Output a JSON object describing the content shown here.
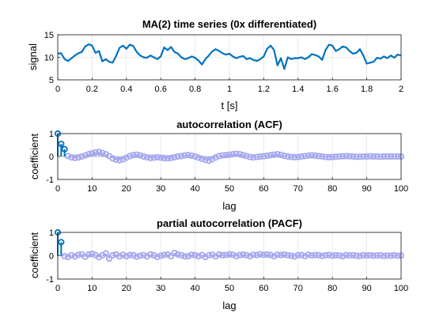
{
  "colors": {
    "signal": "#0072bd",
    "lag_main": "#0072bd",
    "lag_rest": "#a5a8ee",
    "grid": "#dcdcdc"
  },
  "chart_data": [
    {
      "id": "series",
      "type": "line",
      "title": "MA(2) time series (0x differentiated)",
      "xlabel": "t [s]",
      "ylabel": "signal",
      "xlim": [
        0,
        2
      ],
      "ylim": [
        5,
        15
      ],
      "xticks": [
        0,
        0.2,
        0.4,
        0.6,
        0.8,
        1,
        1.2,
        1.4,
        1.6,
        1.8,
        2
      ],
      "yticks": [
        5,
        10,
        15
      ],
      "grid": true,
      "x": [
        0,
        0.02,
        0.04,
        0.06,
        0.08,
        0.1,
        0.12,
        0.14,
        0.16,
        0.18,
        0.2,
        0.22,
        0.24,
        0.26,
        0.28,
        0.3,
        0.32,
        0.34,
        0.36,
        0.38,
        0.4,
        0.42,
        0.44,
        0.46,
        0.48,
        0.5,
        0.52,
        0.54,
        0.56,
        0.58,
        0.6,
        0.62,
        0.64,
        0.66,
        0.68,
        0.7,
        0.72,
        0.74,
        0.76,
        0.78,
        0.8,
        0.82,
        0.84,
        0.86,
        0.88,
        0.9,
        0.92,
        0.94,
        0.96,
        0.98,
        1,
        1.02,
        1.04,
        1.06,
        1.08,
        1.1,
        1.12,
        1.14,
        1.16,
        1.18,
        1.2,
        1.22,
        1.24,
        1.26,
        1.28,
        1.3,
        1.32,
        1.34,
        1.36,
        1.38,
        1.4,
        1.42,
        1.44,
        1.46,
        1.48,
        1.5,
        1.52,
        1.54,
        1.56,
        1.58,
        1.6,
        1.62,
        1.64,
        1.66,
        1.68,
        1.7,
        1.72,
        1.74,
        1.76,
        1.78,
        1.8,
        1.82,
        1.84,
        1.86,
        1.88,
        1.9,
        1.92,
        1.94,
        1.96,
        1.98,
        2
      ],
      "y": [
        10.8,
        10.9,
        9.6,
        9.2,
        9.8,
        10.4,
        10.9,
        11.2,
        12.4,
        12.9,
        12.6,
        11.0,
        11.4,
        9.1,
        9.6,
        9.0,
        8.8,
        10.3,
        12.1,
        12.6,
        11.9,
        12.8,
        12.5,
        11.2,
        10.4,
        10.0,
        9.9,
        10.4,
        10.0,
        9.6,
        10.2,
        12.2,
        11.6,
        12.3,
        11.2,
        10.8,
        10.0,
        9.6,
        9.8,
        10.2,
        9.9,
        9.3,
        8.4,
        9.6,
        10.4,
        11.3,
        11.8,
        11.4,
        10.9,
        10.6,
        10.8,
        10.2,
        9.8,
        10.1,
        10.3,
        9.6,
        9.8,
        9.4,
        9.2,
        9.6,
        10.2,
        11.9,
        12.6,
        11.6,
        8.2,
        9.8,
        7.4,
        10.0,
        9.6,
        9.8,
        9.8,
        10.0,
        9.6,
        10.0,
        10.7,
        10.5,
        10.2,
        9.4,
        11.6,
        12.8,
        12.6,
        11.4,
        11.8,
        12.4,
        12.2,
        11.4,
        10.8,
        11.0,
        11.8,
        10.4,
        8.6,
        8.8,
        9.0,
        9.9,
        9.7,
        10.2,
        9.8,
        10.4,
        9.9,
        10.6,
        10.4
      ]
    },
    {
      "id": "acf",
      "type": "stem",
      "title": "autocorrelation (ACF)",
      "xlabel": "lag",
      "ylabel": "coefficient",
      "xlim": [
        0,
        100
      ],
      "ylim": [
        -1,
        1
      ],
      "xticks": [
        0,
        10,
        20,
        30,
        40,
        50,
        60,
        70,
        80,
        90,
        100
      ],
      "yticks": [
        -1,
        0,
        1
      ],
      "grid": true,
      "highlighted_lags": 3,
      "x": [
        0,
        1,
        2,
        3,
        4,
        5,
        6,
        7,
        8,
        9,
        10,
        11,
        12,
        13,
        14,
        15,
        16,
        17,
        18,
        19,
        20,
        21,
        22,
        23,
        24,
        25,
        26,
        27,
        28,
        29,
        30,
        31,
        32,
        33,
        34,
        35,
        36,
        37,
        38,
        39,
        40,
        41,
        42,
        43,
        44,
        45,
        46,
        47,
        48,
        49,
        50,
        51,
        52,
        53,
        54,
        55,
        56,
        57,
        58,
        59,
        60,
        61,
        62,
        63,
        64,
        65,
        66,
        67,
        68,
        69,
        70,
        71,
        72,
        73,
        74,
        75,
        76,
        77,
        78,
        79,
        80,
        81,
        82,
        83,
        84,
        85,
        86,
        87,
        88,
        89,
        90,
        91,
        92,
        93,
        94,
        95,
        96,
        97,
        98,
        99,
        100
      ],
      "y": [
        1.0,
        0.55,
        0.32,
        0.02,
        -0.04,
        -0.06,
        -0.04,
        0.0,
        0.05,
        0.1,
        0.14,
        0.18,
        0.2,
        0.16,
        0.1,
        0.02,
        -0.08,
        -0.14,
        -0.16,
        -0.12,
        -0.05,
        0.02,
        0.06,
        0.08,
        0.05,
        0.0,
        -0.04,
        -0.06,
        -0.05,
        -0.03,
        -0.05,
        -0.07,
        -0.08,
        -0.06,
        -0.03,
        0.0,
        0.02,
        0.05,
        0.06,
        0.04,
        0.0,
        -0.05,
        -0.1,
        -0.14,
        -0.18,
        -0.12,
        -0.04,
        0.02,
        0.05,
        0.06,
        0.08,
        0.1,
        0.12,
        0.1,
        0.06,
        0.02,
        -0.02,
        -0.04,
        -0.02,
        0.0,
        0.01,
        0.03,
        0.06,
        0.08,
        0.1,
        0.07,
        0.03,
        0.0,
        -0.02,
        -0.03,
        -0.02,
        0.0,
        0.02,
        0.04,
        0.05,
        0.04,
        0.02,
        0.0,
        -0.02,
        -0.03,
        -0.02,
        -0.01,
        0.0,
        0.01,
        0.02,
        0.01,
        0.0,
        -0.01,
        -0.01,
        0.0,
        0.0,
        0.01,
        0.0,
        0.0,
        -0.01,
        0.0,
        0.0,
        0.0,
        0.0,
        0.0,
        0.0
      ]
    },
    {
      "id": "pacf",
      "type": "stem",
      "title": "partial autocorrelation (PACF)",
      "xlabel": "lag",
      "ylabel": "coefficient",
      "xlim": [
        0,
        100
      ],
      "ylim": [
        -1,
        1
      ],
      "xticks": [
        0,
        10,
        20,
        30,
        40,
        50,
        60,
        70,
        80,
        90,
        100
      ],
      "yticks": [
        -1,
        0,
        1
      ],
      "grid": true,
      "highlighted_lags": 2,
      "x": [
        0,
        1,
        2,
        3,
        4,
        5,
        6,
        7,
        8,
        9,
        10,
        11,
        12,
        13,
        14,
        15,
        16,
        17,
        18,
        19,
        20,
        21,
        22,
        23,
        24,
        25,
        26,
        27,
        28,
        29,
        30,
        31,
        32,
        33,
        34,
        35,
        36,
        37,
        38,
        39,
        40,
        41,
        42,
        43,
        44,
        45,
        46,
        47,
        48,
        49,
        50,
        51,
        52,
        53,
        54,
        55,
        56,
        57,
        58,
        59,
        60,
        61,
        62,
        63,
        64,
        65,
        66,
        67,
        68,
        69,
        70,
        71,
        72,
        73,
        74,
        75,
        76,
        77,
        78,
        79,
        80,
        81,
        82,
        83,
        84,
        85,
        86,
        87,
        88,
        89,
        90,
        91,
        92,
        93,
        94,
        95,
        96,
        97,
        98,
        99,
        100
      ],
      "y": [
        1.0,
        0.58,
        -0.02,
        -0.05,
        0.02,
        -0.03,
        0.04,
        0.06,
        -0.04,
        0.05,
        0.08,
        0.03,
        -0.06,
        0.02,
        0.1,
        -0.12,
        0.02,
        0.05,
        -0.03,
        0.04,
        -0.02,
        0.03,
        0.02,
        -0.04,
        0.0,
        0.03,
        -0.03,
        0.05,
        0.02,
        -0.05,
        0.0,
        0.03,
        0.05,
        -0.02,
        0.12,
        0.05,
        0.02,
        -0.03,
        -0.02,
        0.04,
        0.02,
        -0.02,
        0.03,
        -0.05,
        0.02,
        0.04,
        -0.03,
        0.05,
        0.02,
        0.03,
        0.06,
        0.04,
        -0.02,
        0.03,
        0.05,
        0.02,
        -0.02,
        0.04,
        0.03,
        0.06,
        0.04,
        0.05,
        0.03,
        -0.02,
        0.04,
        0.03,
        0.05,
        0.02,
        0.0,
        -0.03,
        0.02,
        0.03,
        -0.02,
        0.04,
        0.01,
        0.03,
        0.02,
        -0.01,
        0.02,
        0.03,
        0.0,
        0.02,
        0.01,
        -0.02,
        0.03,
        0.01,
        0.02,
        0.0,
        -0.01,
        0.02,
        0.01,
        0.02,
        0.0,
        0.01,
        0.02,
        -0.01,
        0.01,
        0.0,
        0.02,
        0.0,
        0.01
      ]
    }
  ]
}
